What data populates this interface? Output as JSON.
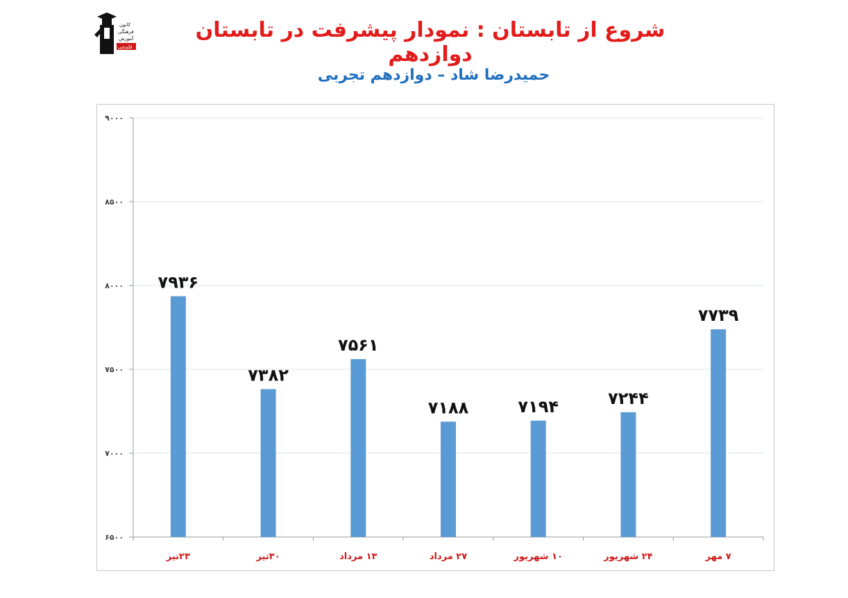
{
  "header": {
    "title": "شروع از تابستان : نمودار پیشرفت در تابستان دوازدهم",
    "subtitle": "حمیدرضا شاد – دوازدهم تجربی",
    "logo": {
      "icon": "graduate-figure-icon",
      "text_lines": [
        "کانون",
        "فرهنگی",
        "آموزش",
        "قلم‌چی"
      ]
    }
  },
  "colors": {
    "bar": "#5b9bd5",
    "title": "#e21b1b",
    "subtitle": "#1f6fbf",
    "x_tick": "#d01818",
    "grid": "#d9e6f2"
  },
  "chart_data": {
    "type": "bar",
    "categories": [
      "۲۳تیر",
      "۳۰تیر",
      "۱۳ مرداد",
      "۲۷ مرداد",
      "۱۰ شهریور",
      "۲۴ شهریور",
      "۷ مهر"
    ],
    "values": [
      7936,
      7382,
      7561,
      7188,
      7194,
      7244,
      7739
    ],
    "value_labels": [
      "۷۹۳۶",
      "۷۳۸۲",
      "۷۵۶۱",
      "۷۱۸۸",
      "۷۱۹۴",
      "۷۲۴۴",
      "۷۷۳۹"
    ],
    "ylim": [
      6500,
      9000
    ],
    "yticks": [
      6500,
      7000,
      7500,
      8000,
      8500,
      9000
    ],
    "ytick_labels": [
      "۶۵۰۰",
      "۷۰۰۰",
      "۷۵۰۰",
      "۸۰۰۰",
      "۸۵۰۰",
      "۹۰۰۰"
    ],
    "grid": true,
    "legend": false,
    "xlabel": "",
    "ylabel": ""
  }
}
